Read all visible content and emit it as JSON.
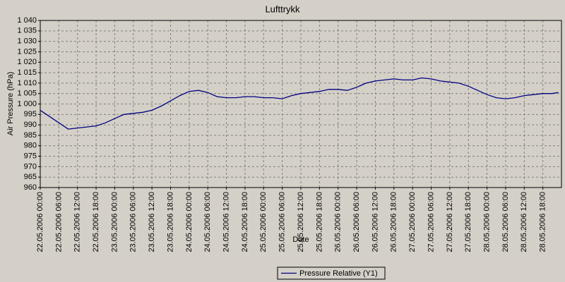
{
  "chart_data": {
    "type": "line",
    "title": "Lufttrykk",
    "x_label": "Date",
    "y_label": "Air Pressure (hPa)",
    "x": [
      "22.05.2006 00:00",
      "22.05.2006 03:00",
      "22.05.2006 06:00",
      "22.05.2006 09:00",
      "22.05.2006 12:00",
      "22.05.2006 15:00",
      "22.05.2006 18:00",
      "22.05.2006 21:00",
      "23.05.2006 00:00",
      "23.05.2006 03:00",
      "23.05.2006 06:00",
      "23.05.2006 09:00",
      "23.05.2006 12:00",
      "23.05.2006 15:00",
      "23.05.2006 18:00",
      "23.05.2006 21:00",
      "24.05.2006 00:00",
      "24.05.2006 03:00",
      "24.05.2006 06:00",
      "24.05.2006 09:00",
      "24.05.2006 12:00",
      "24.05.2006 15:00",
      "24.05.2006 18:00",
      "24.05.2006 21:00",
      "25.05.2006 00:00",
      "25.05.2006 03:00",
      "25.05.2006 06:00",
      "25.05.2006 09:00",
      "25.05.2006 12:00",
      "25.05.2006 15:00",
      "25.05.2006 18:00",
      "25.05.2006 21:00",
      "26.05.2006 00:00",
      "26.05.2006 03:00",
      "26.05.2006 06:00",
      "26.05.2006 09:00",
      "26.05.2006 12:00",
      "26.05.2006 15:00",
      "26.05.2006 18:00",
      "26.05.2006 21:00",
      "27.05.2006 00:00",
      "27.05.2006 03:00",
      "27.05.2006 06:00",
      "27.05.2006 09:00",
      "27.05.2006 12:00",
      "27.05.2006 15:00",
      "27.05.2006 18:00",
      "27.05.2006 21:00",
      "28.05.2006 00:00",
      "28.05.2006 03:00",
      "28.05.2006 06:00",
      "28.05.2006 09:00",
      "28.05.2006 12:00",
      "28.05.2006 15:00",
      "28.05.2006 18:00",
      "28.05.2006 21:00",
      "28.05.2006 23:00"
    ],
    "series": [
      {
        "name": "Pressure Relative (Y1)",
        "color": "#000080",
        "values": [
          997,
          994,
          991,
          988,
          988.5,
          989,
          989.5,
          991,
          993,
          995,
          995.5,
          996,
          997,
          999,
          1001.5,
          1004,
          1006,
          1006.5,
          1005.5,
          1003.5,
          1003,
          1003,
          1003.5,
          1003.5,
          1003,
          1003,
          1002.5,
          1004,
          1005,
          1005.5,
          1006,
          1007,
          1007,
          1006.5,
          1008,
          1010,
          1011,
          1011.5,
          1012,
          1011.5,
          1011.5,
          1012.5,
          1012,
          1011,
          1010.5,
          1010,
          1008.5,
          1006.5,
          1004.5,
          1003,
          1002.5,
          1003,
          1004,
          1004.5,
          1005,
          1005,
          1005.5
        ]
      }
    ],
    "xlim": [
      "22.05.2006 00:00",
      "29.05.2006 00:00"
    ],
    "xticks": [
      "22.05.2006 00:00",
      "22.05.2006 06:00",
      "22.05.2006 12:00",
      "22.05.2006 18:00",
      "23.05.2006 00:00",
      "23.05.2006 06:00",
      "23.05.2006 12:00",
      "23.05.2006 18:00",
      "24.05.2006 00:00",
      "24.05.2006 06:00",
      "24.05.2006 12:00",
      "24.05.2006 18:00",
      "25.05.2006 00:00",
      "25.05.2006 06:00",
      "25.05.2006 12:00",
      "25.05.2006 18:00",
      "26.05.2006 00:00",
      "26.05.2006 06:00",
      "26.05.2006 12:00",
      "26.05.2006 18:00",
      "27.05.2006 00:00",
      "27.05.2006 06:00",
      "27.05.2006 12:00",
      "27.05.2006 18:00",
      "28.05.2006 00:00",
      "28.05.2006 06:00",
      "28.05.2006 12:00",
      "28.05.2006 18:00"
    ],
    "ylim": [
      960,
      1040
    ],
    "yticks": [
      960,
      965,
      970,
      975,
      980,
      985,
      990,
      995,
      {
        "value": 1000,
        "label": "1 000"
      },
      {
        "value": 1005,
        "label": "1 005"
      },
      {
        "value": 1010,
        "label": "1 010"
      },
      {
        "value": 1015,
        "label": "1 015"
      },
      {
        "value": 1020,
        "label": "1 020"
      },
      {
        "value": 1025,
        "label": "1 025"
      },
      {
        "value": 1030,
        "label": "1 030"
      },
      {
        "value": 1035,
        "label": "1 035"
      },
      {
        "value": 1040,
        "label": "1 040"
      }
    ],
    "grid": true,
    "legend": "bottom"
  }
}
